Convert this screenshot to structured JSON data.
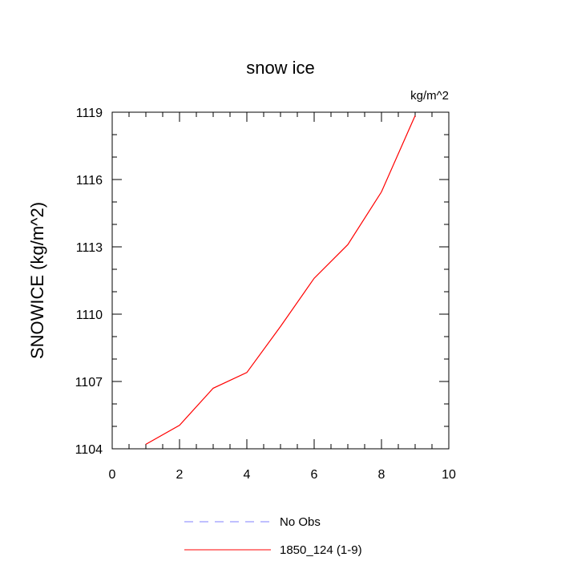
{
  "chart_data": {
    "type": "line",
    "title": "snow ice",
    "units_label": "kg/m^2",
    "xlabel": "",
    "ylabel": "SNOWICE  (kg/m^2)",
    "xlim": [
      0,
      10
    ],
    "ylim": [
      1104,
      1119
    ],
    "xticks": [
      0,
      2,
      4,
      6,
      8,
      10
    ],
    "yticks": [
      1104,
      1107,
      1110,
      1113,
      1116,
      1119
    ],
    "grid": false,
    "legend_position": "bottom",
    "series": [
      {
        "name": "1850_124 (1-9)",
        "color": "#ff0000",
        "style": "solid",
        "x": [
          1,
          2,
          3,
          4,
          5,
          6,
          7,
          8,
          9
        ],
        "y": [
          1104.2,
          1105.05,
          1106.7,
          1107.4,
          1109.45,
          1111.6,
          1113.1,
          1115.45,
          1118.85
        ]
      }
    ],
    "legend": [
      {
        "label": "No Obs",
        "color": "#8080ff",
        "style": "dashed"
      },
      {
        "label": "1850_124 (1-9)",
        "color": "#ff0000",
        "style": "solid"
      }
    ]
  }
}
